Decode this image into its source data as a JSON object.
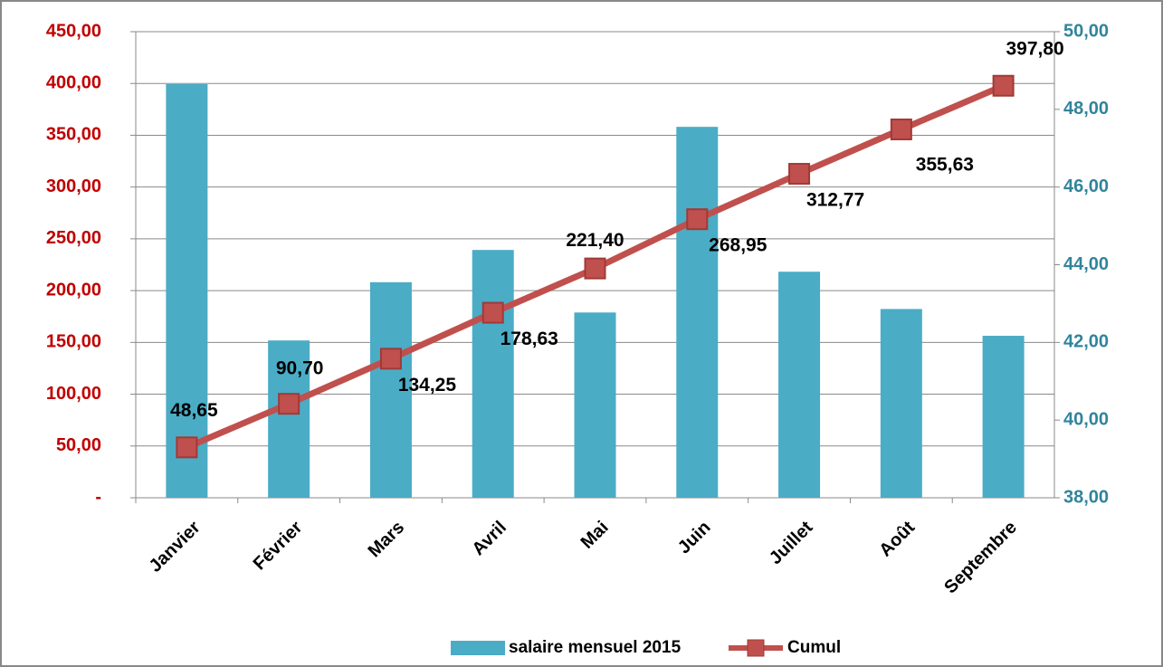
{
  "chart_data": {
    "type": "bar-line",
    "categories": [
      "Janvier",
      "Février",
      "Mars",
      "Avril",
      "Mai",
      "Juin",
      "Juillet",
      "Août",
      "Septembre"
    ],
    "series": [
      {
        "name": "salaire mensuel 2015",
        "type": "bar",
        "axis": "y2",
        "color": "#4bacc6",
        "values": [
          48.65,
          42.05,
          43.55,
          44.38,
          42.77,
          47.55,
          43.82,
          42.86,
          42.17
        ]
      },
      {
        "name": "Cumul",
        "type": "line",
        "axis": "y",
        "color": "#c0504d",
        "values": [
          48.65,
          90.7,
          134.25,
          178.63,
          221.4,
          268.95,
          312.77,
          355.63,
          397.8
        ],
        "value_labels": [
          "48,65",
          "90,70",
          "134,25",
          "178,63",
          "221,40",
          "268,95",
          "312,77",
          "355,63",
          "397,80"
        ]
      }
    ],
    "ylim": [
      0,
      450
    ],
    "yticks": [
      {
        "value": 0,
        "label": "-"
      },
      {
        "value": 50,
        "label": "50,00"
      },
      {
        "value": 100,
        "label": "100,00"
      },
      {
        "value": 150,
        "label": "150,00"
      },
      {
        "value": 200,
        "label": "200,00"
      },
      {
        "value": 250,
        "label": "250,00"
      },
      {
        "value": 300,
        "label": "300,00"
      },
      {
        "value": 350,
        "label": "350,00"
      },
      {
        "value": 400,
        "label": "400,00"
      },
      {
        "value": 450,
        "label": "450,00"
      }
    ],
    "y2lim": [
      38,
      50
    ],
    "y2ticks": [
      {
        "value": 38,
        "label": "38,00"
      },
      {
        "value": 40,
        "label": "40,00"
      },
      {
        "value": 42,
        "label": "42,00"
      },
      {
        "value": 44,
        "label": "44,00"
      },
      {
        "value": 46,
        "label": "46,00"
      },
      {
        "value": 48,
        "label": "48,00"
      },
      {
        "value": 50,
        "label": "50,00"
      }
    ],
    "grid": true,
    "legend": "bottom"
  }
}
